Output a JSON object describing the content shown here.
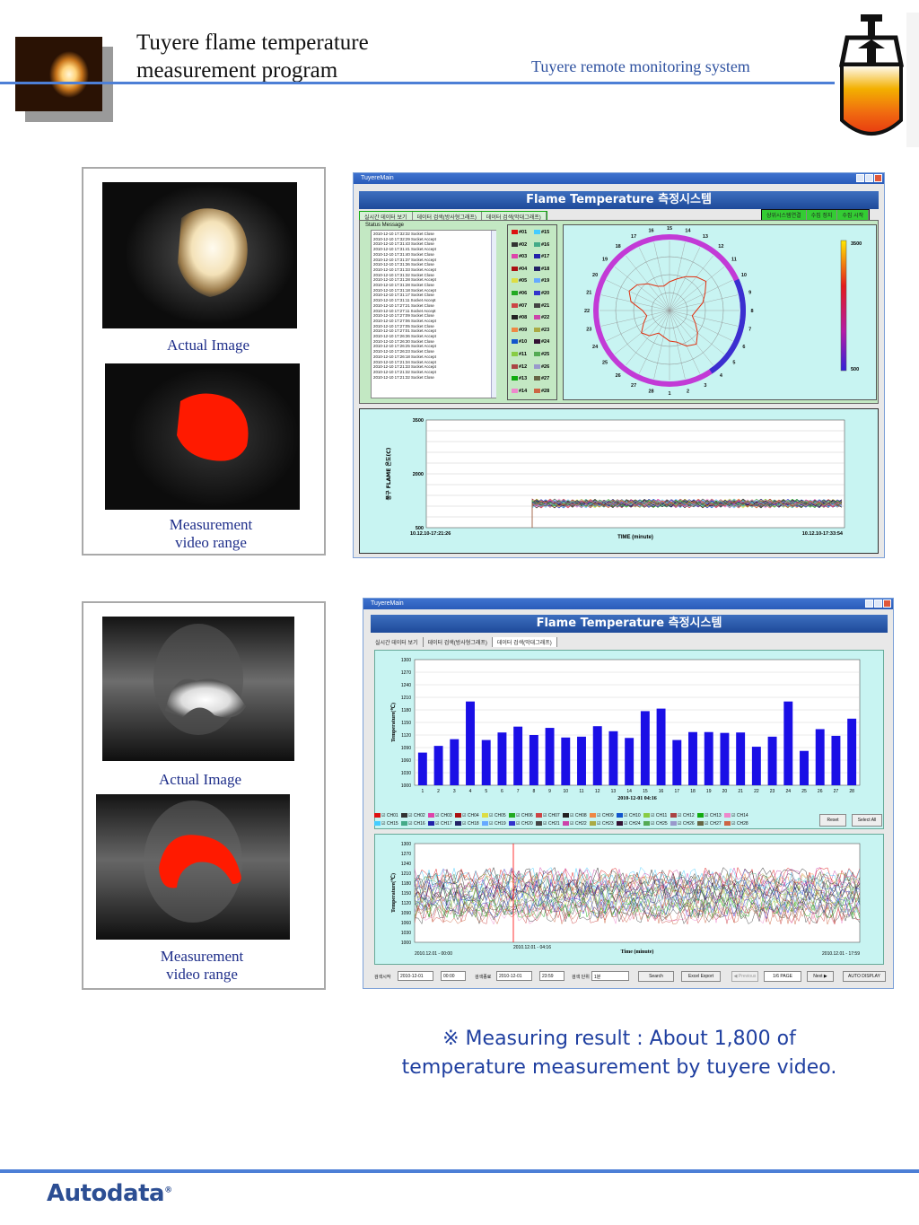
{
  "header": {
    "title_line1": "Tuyere flame temperature",
    "title_line2": "measurement program",
    "subtitle": "Tuyere remote monitoring system"
  },
  "panel_top": {
    "actual_caption": "Actual Image",
    "measure_caption_1": "Measurement",
    "measure_caption_2": "video range"
  },
  "panel_bottom": {
    "actual_caption": "Actual Image",
    "measure_caption_1": "Measurement",
    "measure_caption_2": "video range"
  },
  "screen1": {
    "window_title": "TuyereMain",
    "banner": "Flame Temperature 측정시스템",
    "tabs": [
      "실시간 데이터 보기",
      "데이터 검색(방사형그래프)",
      "데이터 검색(막대그래프)"
    ],
    "right_buttons": [
      "상위시스템연결",
      "수집 정지",
      "수집 시작"
    ],
    "status_title": "Status Message",
    "status_lines": [
      "2010-12-10 17:32:32  Socket Close",
      "2010-12-10 17:32:29  Socket Accept",
      "2010-12-10 17:31:43  Socket Close",
      "2010-12-10 17:31:41  Socket Accept",
      "2010-12-10 17:31:40  Socket Close",
      "2010-12-10 17:31:37  Socket Accept",
      "2010-12-10 17:31:36  Socket Close",
      "2010-12-10 17:31:33  Socket Accept",
      "2010-12-10 17:31:32  Socket Close",
      "2010-12-10 17:31:28  Socket Accept",
      "2010-12-10 17:31:28  Socket Close",
      "2010-12-10 17:31:18  Socket Accept",
      "2010-12-10 17:31:17  Socket Close",
      "2010-12-10 17:31:11  Socket Accept",
      "2010-12-10 17:27:21  Socket Close",
      "2010-12-10 17:27:11  Socket Accept",
      "2010-12-10 17:27:09  Socket Close",
      "2010-12-10 17:27:06  Socket Accept",
      "2010-12-10 17:27:05  Socket Close",
      "2010-12-10 17:27:01  Socket Accept",
      "2010-12-10 17:26:36  Socket Accept",
      "2010-12-10 17:26:30  Socket Close",
      "2010-12-10 17:26:25  Socket Accept",
      "2010-12-10 17:26:23  Socket Close",
      "2010-12-10 17:26:18  Socket Accept",
      "2010-12-10 17:21:34  Socket Accept",
      "2010-12-10 17:21:33  Socket Accept",
      "2010-12-10 17:21:32  Socket Accept",
      "2010-12-10 17:21:32  Socket Close"
    ],
    "channels_left": [
      "#01",
      "#02",
      "#03",
      "#04",
      "#05",
      "#06",
      "#07",
      "#08",
      "#09",
      "#10",
      "#11",
      "#12",
      "#13",
      "#14"
    ],
    "channels_right": [
      "#15",
      "#16",
      "#17",
      "#18",
      "#19",
      "#20",
      "#21",
      "#22",
      "#23",
      "#24",
      "#25",
      "#26",
      "#27",
      "#28"
    ],
    "channel_colors": [
      "#d11",
      "#333",
      "#d4a",
      "#a11",
      "#dd4",
      "#2a2",
      "#c44",
      "#222",
      "#e84",
      "#15c",
      "#8c4",
      "#a44",
      "#1a1",
      "#e8c",
      "#4cf",
      "#4a8",
      "#22a",
      "#226",
      "#6af",
      "#33c",
      "#444",
      "#c4a",
      "#aa4",
      "#313",
      "#5a5",
      "#99c",
      "#664",
      "#c64"
    ],
    "colorbar_max": "3500",
    "colorbar_min": "500",
    "radial_labels": [
      "1",
      "2",
      "3",
      "4",
      "5",
      "6",
      "7",
      "8",
      "9",
      "10",
      "11",
      "12",
      "13",
      "14",
      "15",
      "16",
      "17",
      "18",
      "19",
      "20",
      "21",
      "22",
      "23",
      "24",
      "25",
      "26",
      "27",
      "28"
    ],
    "trend_ylabel": "풍구 FLAME 온도(C)",
    "trend_y_ticks": [
      "3500",
      "2000",
      "500"
    ],
    "trend_xlabel": "TIME (minute)",
    "trend_start": "10.12.10-17:21:26",
    "trend_end": "10.12.10-17:33:54"
  },
  "screen2": {
    "window_title": "TuyereMain",
    "banner": "Flame Temperature 측정시스템",
    "tabs": [
      "실시간 데이터 보기",
      "데이터 검색(방사형그래프)",
      "데이터 검색(막대그래프)"
    ],
    "bar_ylabel": "Temperature(℃)",
    "bar_y_ticks": [
      "1300",
      "1270",
      "1240",
      "1210",
      "1180",
      "1150",
      "1120",
      "1090",
      "1060",
      "1030",
      "1000"
    ],
    "bar_xlabel": "2010-12-01 04:16",
    "legend_row1": [
      "CH01",
      "CH02",
      "CH03",
      "CH04",
      "CH05",
      "CH06",
      "CH07",
      "CH08",
      "CH09",
      "CH10",
      "CH11",
      "CH12",
      "CH13",
      "CH14"
    ],
    "legend_row2": [
      "CH15",
      "CH16",
      "CH17",
      "CH18",
      "CH19",
      "CH20",
      "CH21",
      "CH22",
      "CH23",
      "CH24",
      "CH25",
      "CH26",
      "CH27",
      "CH28"
    ],
    "reset_label": "Reset",
    "select_all_label": "Select All",
    "line_ylabel": "Temperature(℃)",
    "line_y_ticks": [
      "1300",
      "1270",
      "1240",
      "1210",
      "1180",
      "1150",
      "1120",
      "1090",
      "1060",
      "1030",
      "1000"
    ],
    "line_xlabel": "Time (minute)",
    "line_start": "2010.12.01 - 00:00",
    "line_marker": "2010.12.01 - 04:16",
    "line_end": "2010.12.01 - 17:59",
    "search_start_label": "검색시작",
    "search_start_date": "2010-12-01",
    "search_start_time": "00:00",
    "search_end_label": "검색종료",
    "search_end_date": "2010-12-01",
    "search_end_time": "23:59",
    "search_unit_label": "검색 단위",
    "search_unit_value": "1분",
    "search_button": "Search",
    "excel_button": "Excel Export",
    "previous_button": "◀ Previous",
    "page_value": "1/6 PAGE",
    "next_button": "Next ▶",
    "auto_button": "AUTO DISPLAY"
  },
  "chart_data": [
    {
      "type": "bar",
      "categories": [
        "1",
        "2",
        "3",
        "4",
        "5",
        "6",
        "7",
        "8",
        "9",
        "10",
        "11",
        "12",
        "13",
        "14",
        "15",
        "16",
        "17",
        "18",
        "19",
        "20",
        "21",
        "22",
        "23",
        "24",
        "25",
        "26",
        "27",
        "28"
      ],
      "values": [
        1078,
        1094,
        1110,
        1200,
        1108,
        1126,
        1140,
        1120,
        1137,
        1114,
        1116,
        1141,
        1129,
        1113,
        1177,
        1183,
        1108,
        1127,
        1127,
        1125,
        1126,
        1092,
        1116,
        1200,
        1082,
        1134,
        1118,
        1159
      ],
      "ylabel": "Temperature(℃)",
      "xlabel": "2010-12-01 04:16",
      "ylim": [
        1000,
        1300
      ]
    }
  ],
  "result": {
    "line1": "※ Measuring result : About 1,800 of",
    "line2": "temperature measurement by tuyere video."
  },
  "footer": {
    "brand": "Autodata"
  }
}
